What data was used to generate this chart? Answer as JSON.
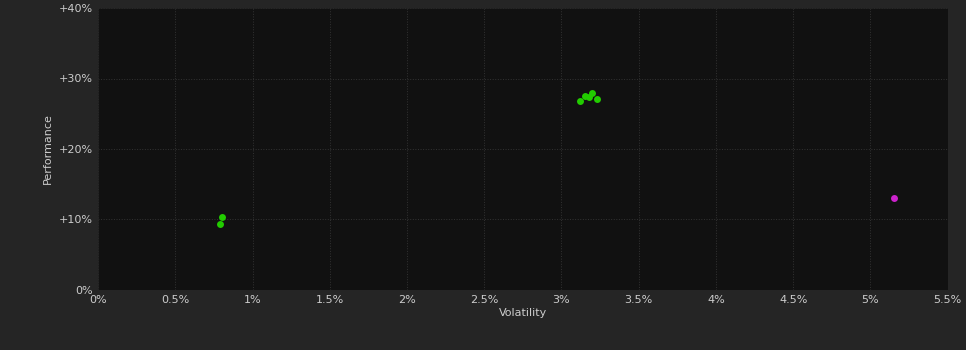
{
  "fig_bg_color": "#252525",
  "plot_bg_color": "#111111",
  "grid_color": "#333333",
  "xlabel": "Volatility",
  "ylabel": "Performance",
  "xlim": [
    0,
    0.055
  ],
  "ylim": [
    0,
    0.4
  ],
  "xticks": [
    0.0,
    0.005,
    0.01,
    0.015,
    0.02,
    0.025,
    0.03,
    0.035,
    0.04,
    0.045,
    0.05,
    0.055
  ],
  "yticks": [
    0.0,
    0.1,
    0.2,
    0.3,
    0.4
  ],
  "green_points": [
    [
      0.0315,
      0.275
    ],
    [
      0.032,
      0.279
    ],
    [
      0.0318,
      0.273
    ],
    [
      0.0323,
      0.271
    ],
    [
      0.0312,
      0.268
    ],
    [
      0.008,
      0.103
    ],
    [
      0.0079,
      0.093
    ]
  ],
  "magenta_points": [
    [
      0.0515,
      0.13
    ]
  ],
  "green_color": "#22cc00",
  "magenta_color": "#cc22cc",
  "marker_size": 5,
  "axis_label_color": "#cccccc",
  "tick_label_color": "#cccccc",
  "label_fontsize": 8,
  "tick_fontsize": 8
}
